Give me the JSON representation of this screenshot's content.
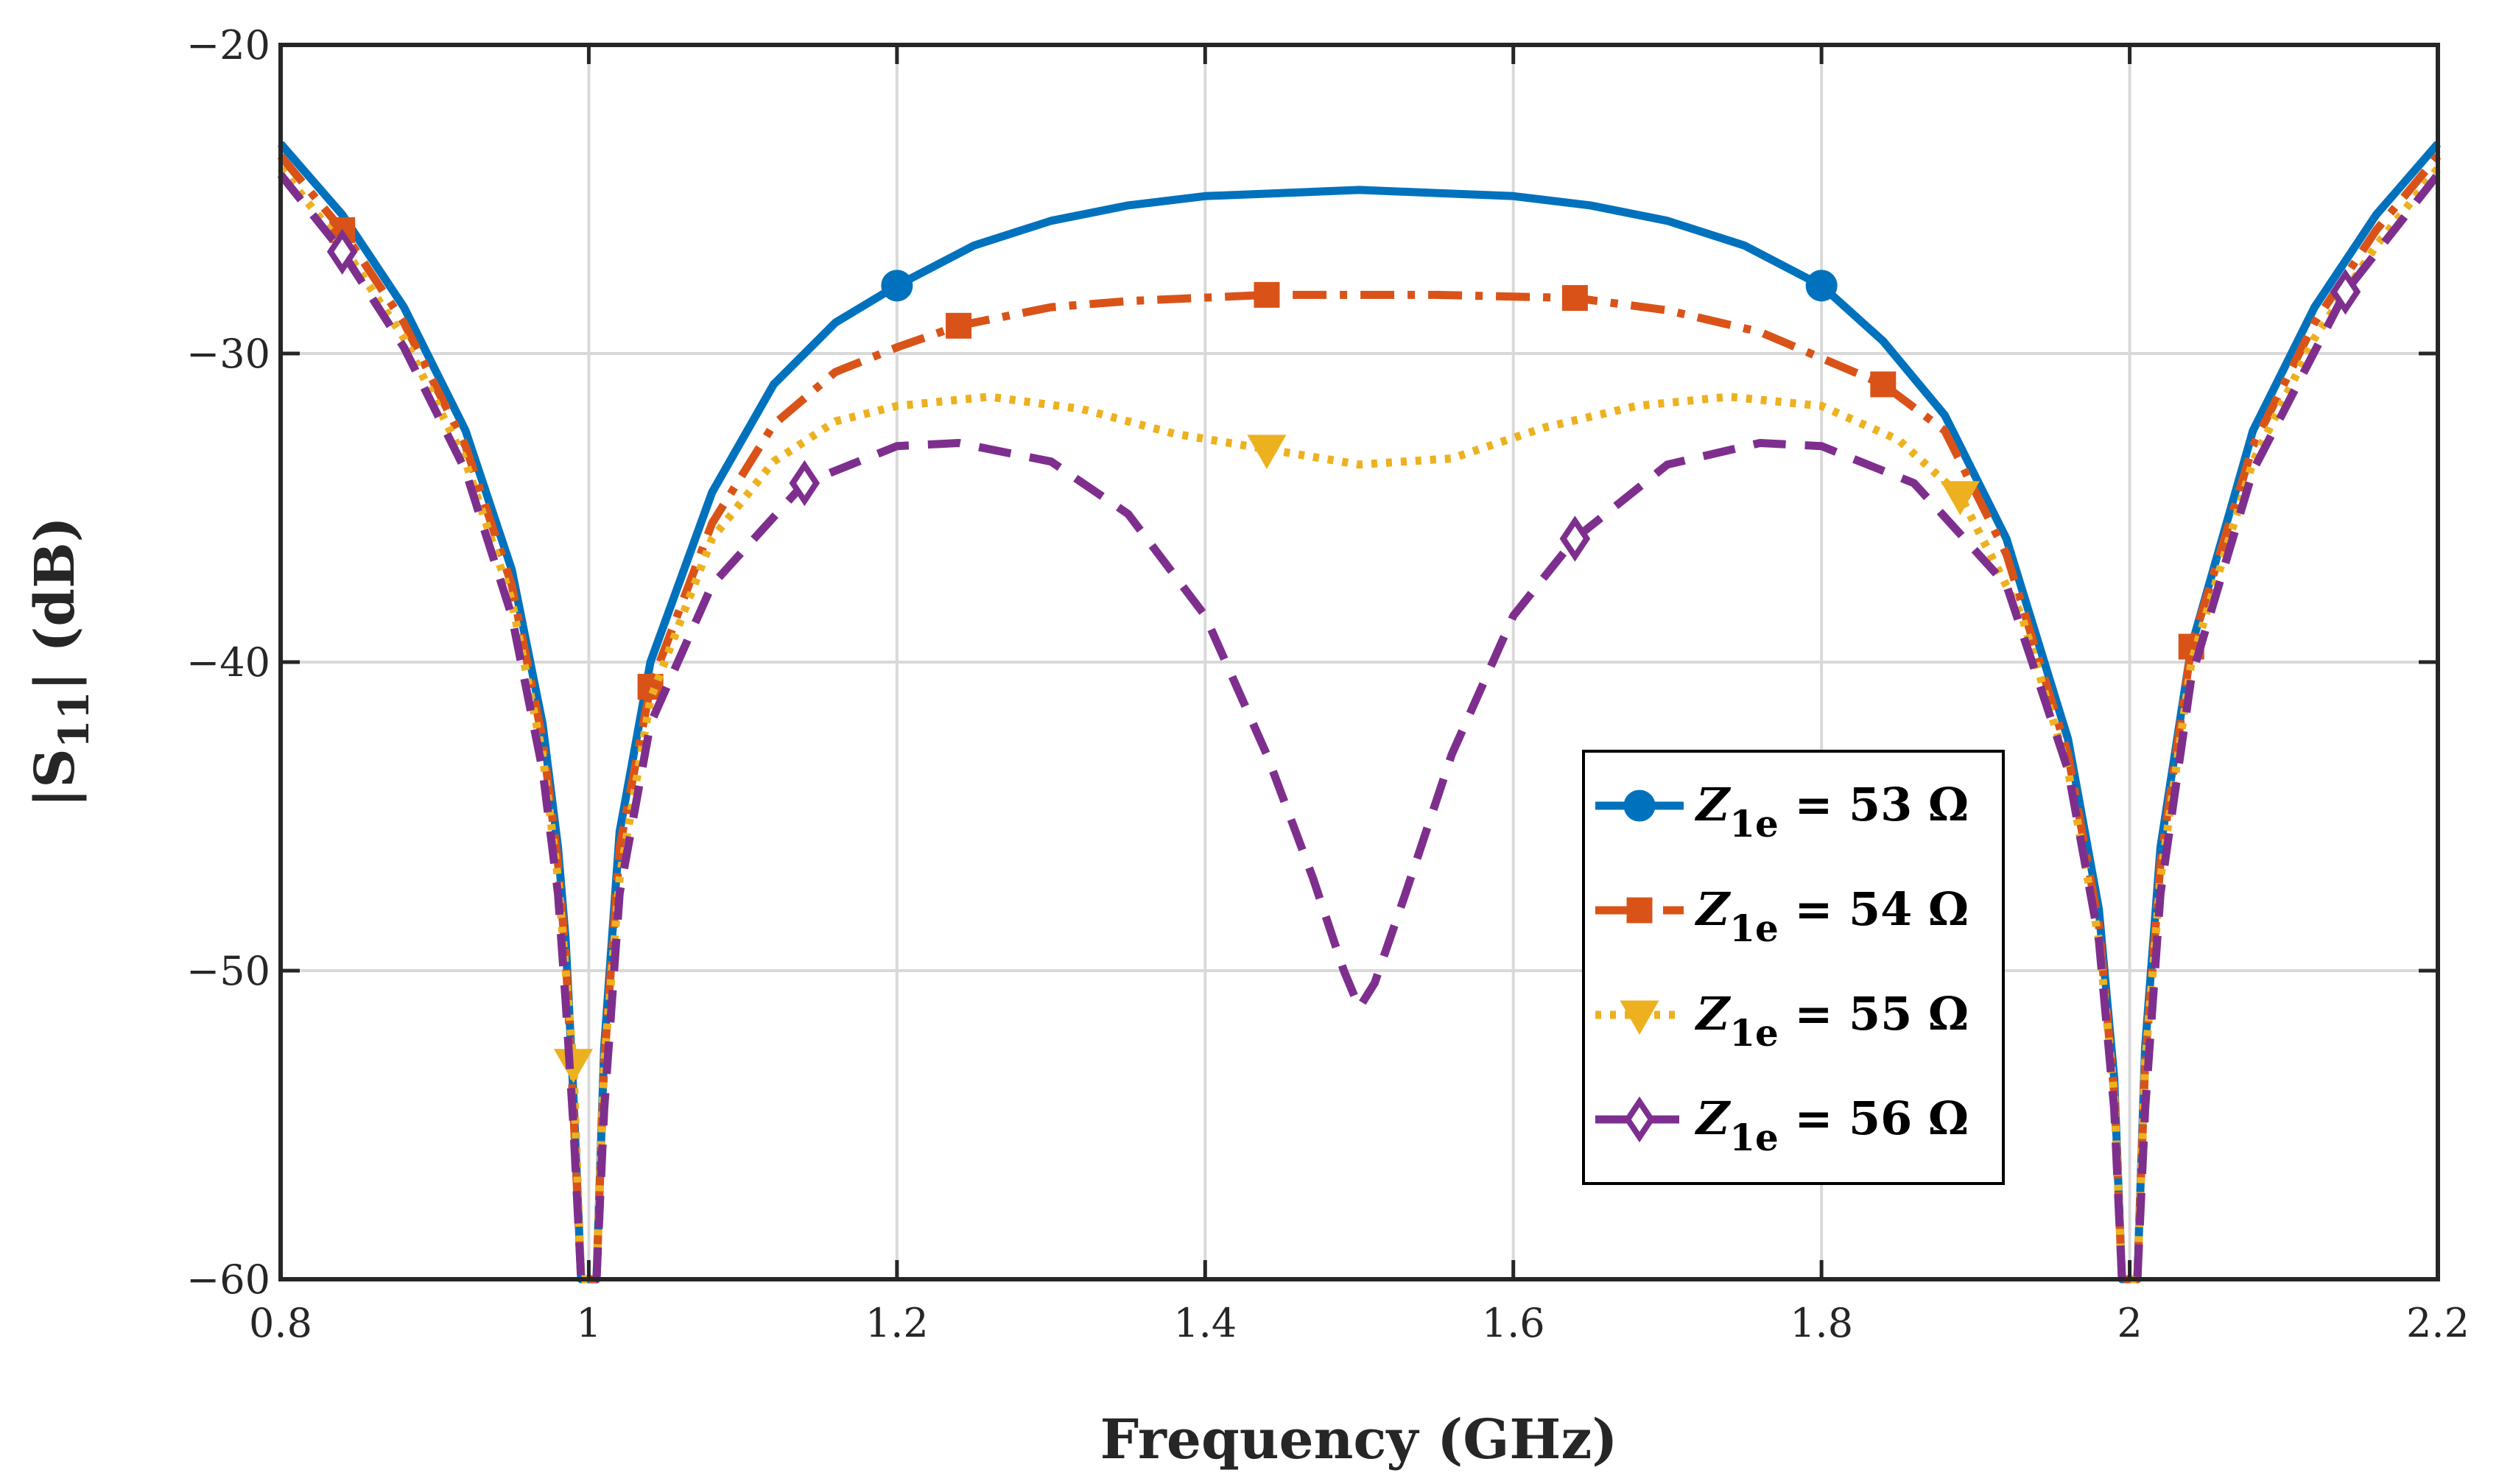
{
  "chart_data": {
    "type": "line",
    "title": "",
    "xlabel": "Frequency (GHz)",
    "ylabel": "|S11| (dB)",
    "ylabel_main": "|S",
    "ylabel_sub": "11",
    "ylabel_tail": "| (dB)",
    "xlim": [
      0.8,
      2.2
    ],
    "ylim": [
      -60,
      -20
    ],
    "grid": true,
    "legend_position": "bottom-right",
    "x_ticks": [
      0.8,
      1,
      1.2,
      1.4,
      1.6,
      1.8,
      2,
      2.2
    ],
    "x_tick_labels": [
      "0.8",
      "1",
      "1.2",
      "1.4",
      "1.6",
      "1.8",
      "2",
      "2.2"
    ],
    "y_ticks": [
      -60,
      -50,
      -40,
      -30,
      -20
    ],
    "y_tick_labels": [
      "−60",
      "−50",
      "−40",
      "−30",
      "−20"
    ],
    "series": [
      {
        "name": "Z1e = 53 Ω",
        "legend_symbol": "Z",
        "legend_sub": "1e",
        "legend_value": " = 53 Ω",
        "color": "#0072BD",
        "line_style": "solid",
        "marker": "circle",
        "x": [
          0.8,
          0.84,
          0.88,
          0.92,
          0.95,
          0.97,
          0.98,
          0.985,
          0.99,
          0.995,
          1.0,
          1.005,
          1.01,
          1.02,
          1.04,
          1.08,
          1.12,
          1.16,
          1.2,
          1.25,
          1.3,
          1.35,
          1.4,
          1.45,
          1.5,
          1.55,
          1.6,
          1.65,
          1.7,
          1.75,
          1.8,
          1.84,
          1.88,
          1.92,
          1.96,
          1.98,
          1.99,
          1.995,
          2.0,
          2.005,
          2.01,
          2.02,
          2.04,
          2.08,
          2.12,
          2.16,
          2.2
        ],
        "y": [
          -23.2,
          -25.5,
          -28.5,
          -32.5,
          -37.0,
          -42.0,
          -46.0,
          -49.0,
          -54.0,
          -60.0,
          -60.0,
          -60.0,
          -52.5,
          -45.5,
          -40.0,
          -34.5,
          -31.0,
          -29.0,
          -27.8,
          -26.5,
          -25.7,
          -25.2,
          -24.9,
          -24.8,
          -24.7,
          -24.8,
          -24.9,
          -25.2,
          -25.7,
          -26.5,
          -27.8,
          -29.6,
          -32.0,
          -36.0,
          -42.5,
          -48.0,
          -53.5,
          -60.0,
          -60.0,
          -60.0,
          -52.5,
          -46.0,
          -39.5,
          -32.5,
          -28.5,
          -25.5,
          -23.2
        ],
        "marker_x": [
          1.2,
          1.8
        ],
        "marker_y": [
          -27.8,
          -27.8
        ]
      },
      {
        "name": "Z1e = 54 Ω",
        "legend_symbol": "Z",
        "legend_sub": "1e",
        "legend_value": " = 54 Ω",
        "color": "#D95319",
        "line_style": "dashdot",
        "marker": "square",
        "x": [
          0.8,
          0.84,
          0.88,
          0.92,
          0.95,
          0.97,
          0.98,
          0.985,
          0.99,
          0.995,
          1.0,
          1.005,
          1.01,
          1.02,
          1.04,
          1.08,
          1.12,
          1.16,
          1.2,
          1.24,
          1.3,
          1.35,
          1.44,
          1.5,
          1.55,
          1.64,
          1.7,
          1.76,
          1.84,
          1.88,
          1.92,
          1.96,
          1.98,
          1.99,
          1.995,
          2.0,
          2.005,
          2.01,
          2.02,
          2.04,
          2.08,
          2.12,
          2.16,
          2.2
        ],
        "y": [
          -23.6,
          -26.0,
          -29.0,
          -33.0,
          -37.5,
          -42.5,
          -46.5,
          -49.5,
          -54.5,
          -60.0,
          -60.0,
          -60.0,
          -53.0,
          -46.0,
          -40.8,
          -35.5,
          -32.3,
          -30.6,
          -29.8,
          -29.1,
          -28.5,
          -28.3,
          -28.1,
          -28.1,
          -28.1,
          -28.2,
          -28.6,
          -29.3,
          -31.0,
          -32.5,
          -36.5,
          -43.0,
          -48.5,
          -54.0,
          -60.0,
          -60.0,
          -60.0,
          -53.0,
          -46.5,
          -39.5,
          -33.0,
          -29.0,
          -26.0,
          -23.6
        ],
        "marker_x": [
          0.84,
          1.04,
          1.24,
          1.44,
          1.64,
          1.84,
          2.04
        ],
        "marker_y": [
          -26.0,
          -40.8,
          -29.1,
          -28.1,
          -28.2,
          -31.0,
          -39.5
        ]
      },
      {
        "name": "Z1e = 55 Ω",
        "legend_symbol": "Z",
        "legend_sub": "1e",
        "legend_value": " = 55 Ω",
        "color": "#EDB120",
        "line_style": "dotted",
        "marker": "triangle-down",
        "x": [
          0.8,
          0.84,
          0.88,
          0.92,
          0.95,
          0.97,
          0.98,
          0.985,
          0.99,
          0.995,
          1.0,
          1.005,
          1.01,
          1.02,
          1.04,
          1.08,
          1.12,
          1.16,
          1.2,
          1.26,
          1.32,
          1.38,
          1.44,
          1.5,
          1.56,
          1.62,
          1.68,
          1.74,
          1.8,
          1.85,
          1.89,
          1.93,
          1.96,
          1.98,
          1.99,
          1.995,
          2.0,
          2.005,
          2.01,
          2.02,
          2.04,
          2.08,
          2.12,
          2.16,
          2.2
        ],
        "y": [
          -24.0,
          -26.5,
          -29.5,
          -33.5,
          -38.0,
          -43.0,
          -47.0,
          -50.0,
          -53.0,
          -60.0,
          -60.0,
          -60.0,
          -53.0,
          -47.0,
          -41.2,
          -36.0,
          -33.5,
          -32.2,
          -31.7,
          -31.4,
          -31.8,
          -32.6,
          -33.1,
          -33.6,
          -33.4,
          -32.4,
          -31.7,
          -31.4,
          -31.7,
          -32.8,
          -34.6,
          -38.5,
          -43.5,
          -49.0,
          -54.0,
          -60.0,
          -60.0,
          -60.0,
          -53.0,
          -47.0,
          -40.0,
          -33.5,
          -29.5,
          -26.5,
          -24.0
        ],
        "marker_x": [
          0.99,
          1.44,
          1.89
        ],
        "marker_y": [
          -53.0,
          -33.1,
          -34.6
        ]
      },
      {
        "name": "Z1e = 56 Ω",
        "legend_symbol": "Z",
        "legend_sub": "1e",
        "legend_value": " = 56 Ω",
        "color": "#7E2F8E",
        "line_style": "dashed",
        "marker": "diamond",
        "x": [
          0.8,
          0.84,
          0.88,
          0.92,
          0.95,
          0.97,
          0.98,
          0.985,
          0.99,
          0.995,
          1.0,
          1.005,
          1.01,
          1.02,
          1.04,
          1.08,
          1.14,
          1.2,
          1.24,
          1.3,
          1.35,
          1.4,
          1.44,
          1.47,
          1.49,
          1.5,
          1.51,
          1.53,
          1.56,
          1.6,
          1.64,
          1.7,
          1.76,
          1.8,
          1.86,
          1.92,
          1.96,
          1.98,
          1.99,
          1.995,
          2.0,
          2.005,
          2.01,
          2.02,
          2.04,
          2.08,
          2.14,
          2.2
        ],
        "y": [
          -24.2,
          -26.7,
          -29.8,
          -33.8,
          -38.5,
          -43.5,
          -47.5,
          -51.0,
          -55.0,
          -60.0,
          -60.0,
          -60.0,
          -54.5,
          -47.5,
          -42.0,
          -37.5,
          -34.2,
          -33.0,
          -32.9,
          -33.5,
          -35.2,
          -38.5,
          -43.0,
          -47.0,
          -50.0,
          -51.2,
          -50.4,
          -47.5,
          -43.0,
          -38.5,
          -36.0,
          -33.6,
          -32.9,
          -33.0,
          -34.2,
          -37.5,
          -43.5,
          -49.0,
          -54.5,
          -60.0,
          -60.0,
          -60.0,
          -54.5,
          -47.5,
          -40.5,
          -33.8,
          -28.0,
          -24.2
        ],
        "marker_x": [
          0.84,
          1.14,
          1.64,
          2.14
        ],
        "marker_y": [
          -26.7,
          -34.2,
          -36.0,
          -28.0
        ]
      }
    ]
  }
}
